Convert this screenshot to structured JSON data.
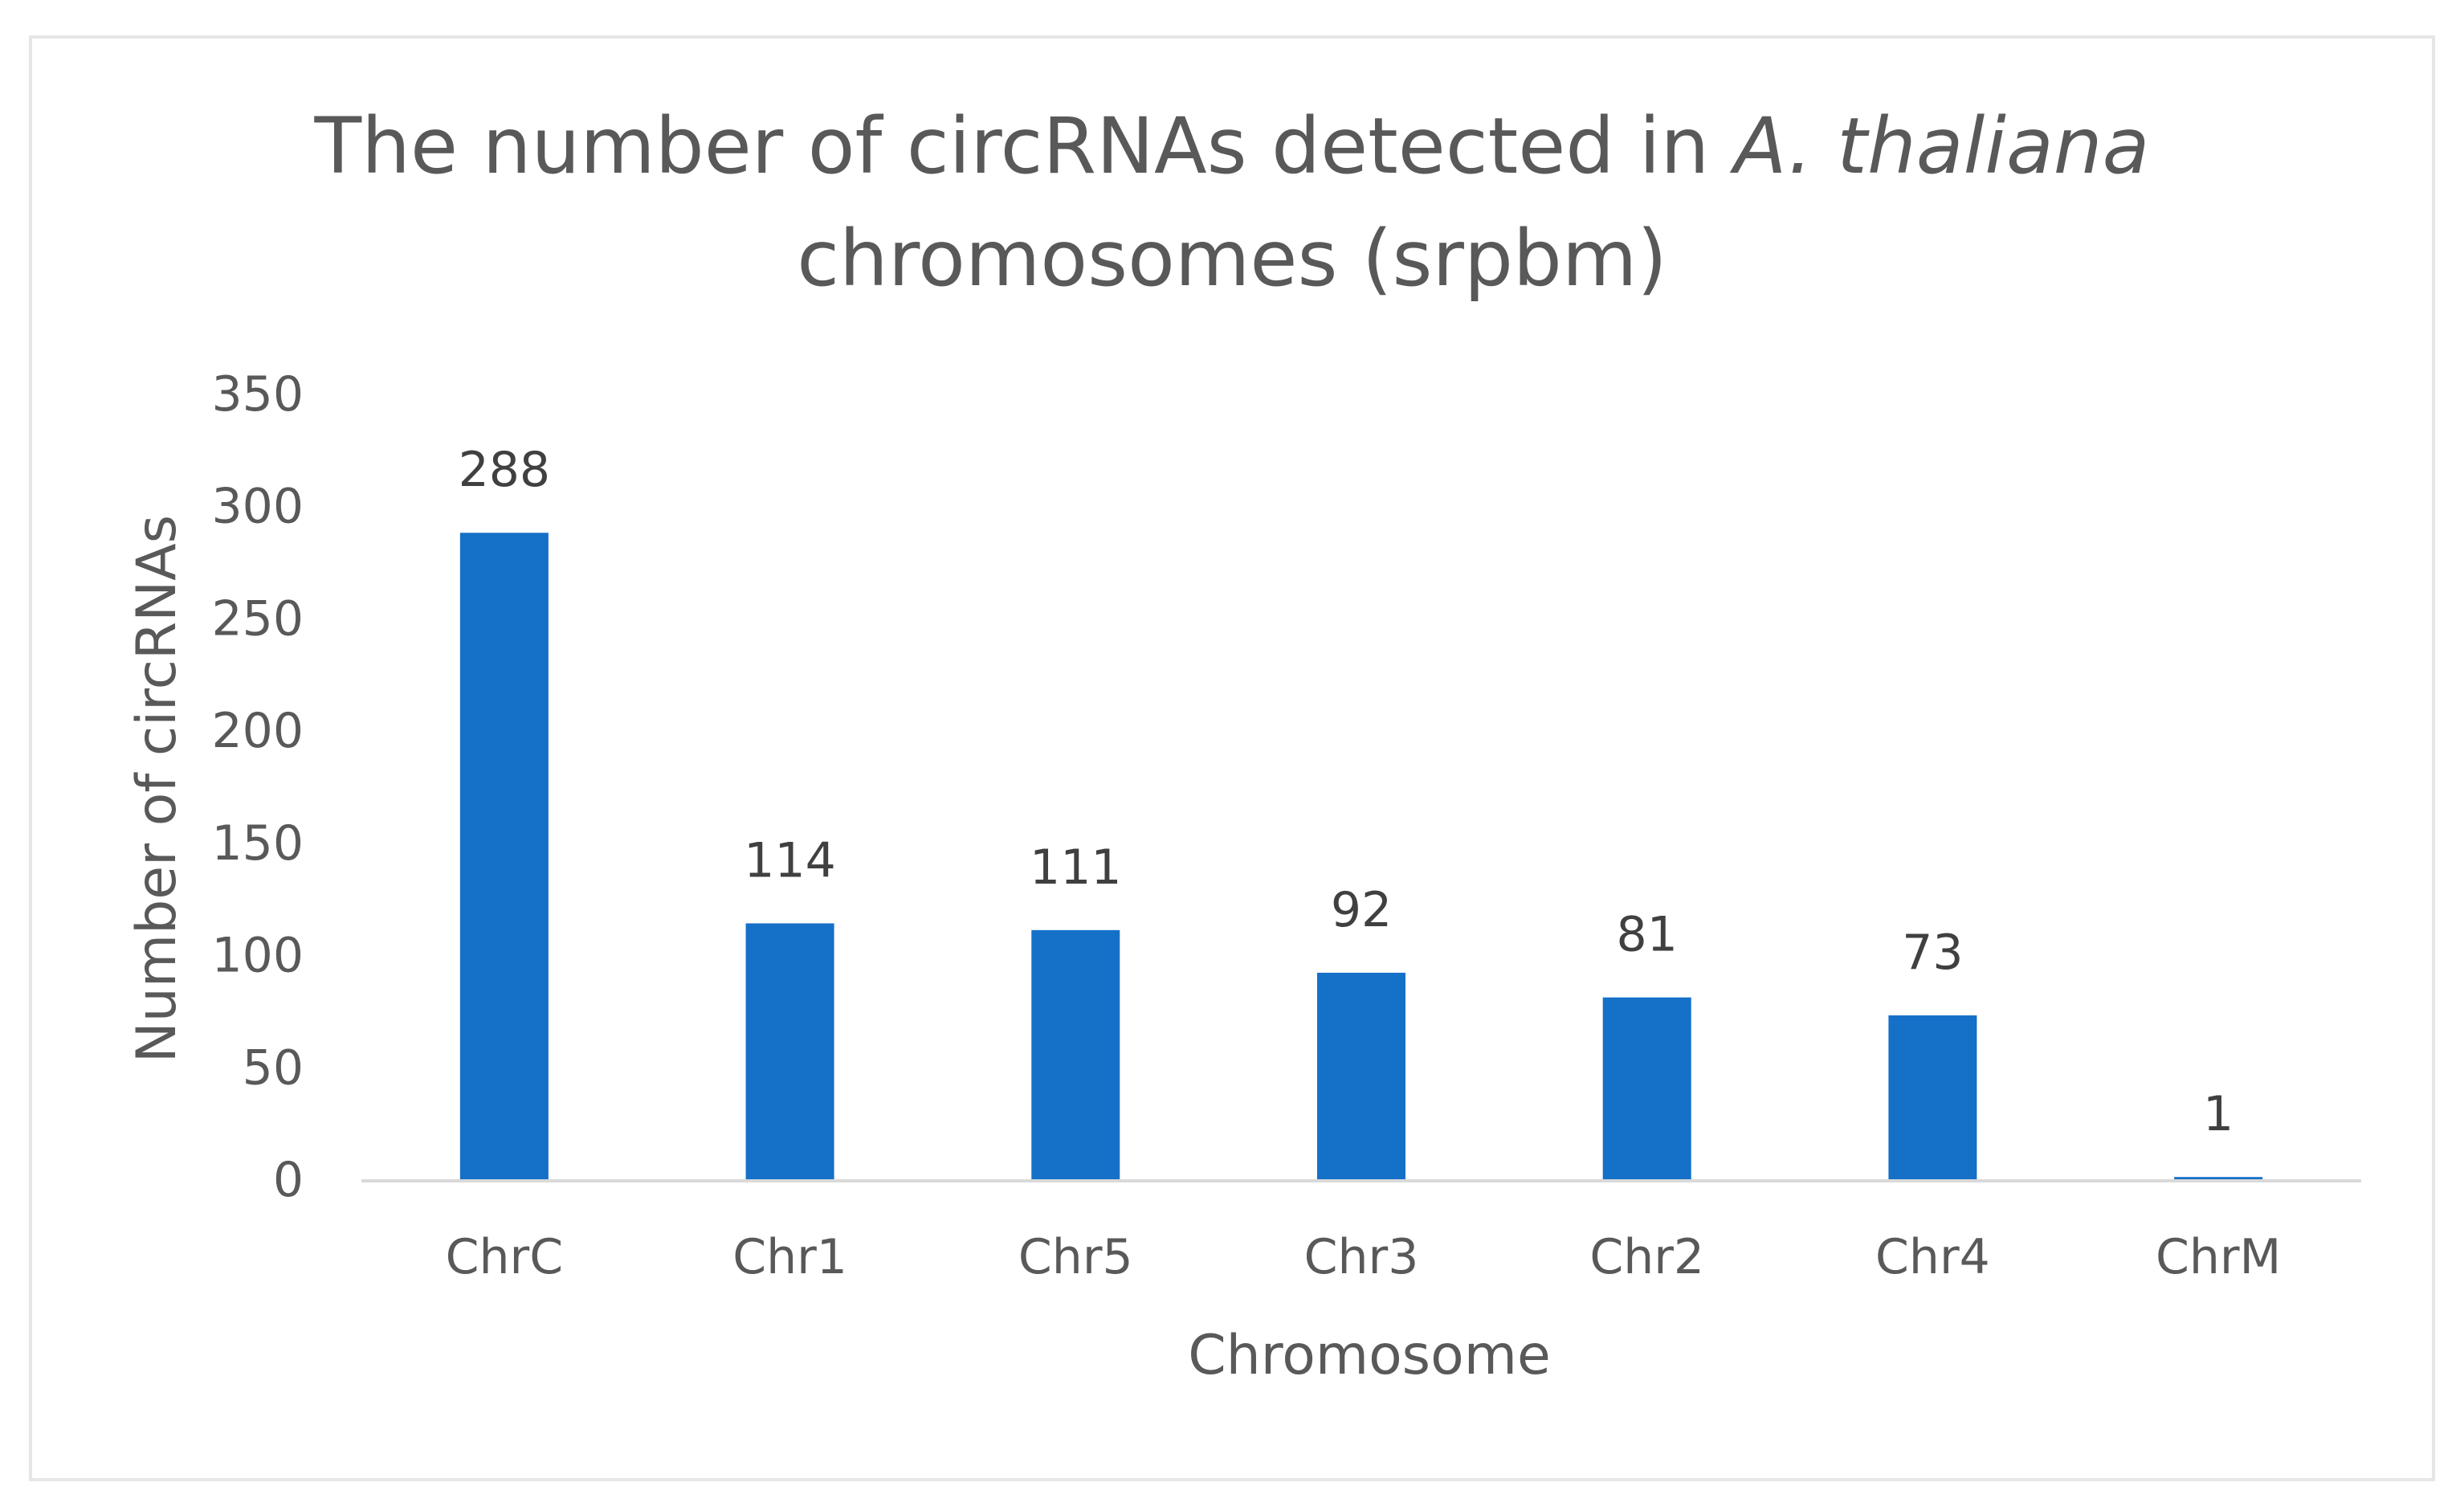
{
  "chart_data": {
    "type": "bar",
    "title": {
      "line1_prefix": "The number of circRNAs detected in ",
      "line1_italic": "A. thaliana",
      "line2": "chromosomes (srpbm)"
    },
    "xlabel": "Chromosome",
    "ylabel": "Number of circRNAs",
    "categories": [
      "ChrC",
      "Chr1",
      "Chr5",
      "Chr3",
      "Chr2",
      "Chr4",
      "ChrM"
    ],
    "values": [
      288,
      114,
      111,
      92,
      81,
      73,
      1
    ],
    "data_labels": [
      "288",
      "114",
      "111",
      "92",
      "81",
      "73",
      "1"
    ],
    "ylim": [
      0,
      350
    ],
    "yticks": [
      0,
      50,
      100,
      150,
      200,
      250,
      300,
      350
    ],
    "ytick_labels": [
      "0",
      "50",
      "100",
      "150",
      "200",
      "250",
      "300",
      "350"
    ],
    "grid": false,
    "legend": "none",
    "bar_color": "#1570c8"
  }
}
